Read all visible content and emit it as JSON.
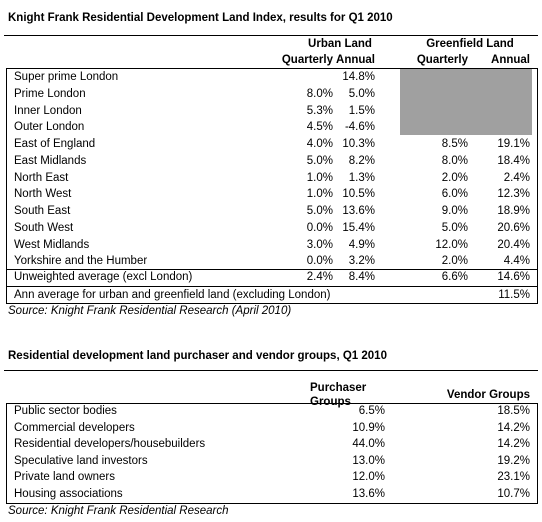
{
  "table1": {
    "title": "Knight Frank Residential Development Land Index, results for Q1 2010",
    "group_headers": [
      "Urban Land",
      "Greenfield Land"
    ],
    "col_headers": [
      "Quarterly",
      "Annual",
      "Quarterly",
      "Annual"
    ],
    "rows": [
      [
        "Super prime London",
        null,
        "14.8%",
        null,
        null
      ],
      [
        "Prime London",
        "8.0%",
        "5.0%",
        null,
        null
      ],
      [
        "Inner London",
        "5.3%",
        "1.5%",
        null,
        null
      ],
      [
        "Outer London",
        "4.5%",
        "-4.6%",
        null,
        null
      ],
      [
        "East of England",
        "4.0%",
        "10.3%",
        "8.5%",
        "19.1%"
      ],
      [
        "East Midlands",
        "5.0%",
        "8.2%",
        "8.0%",
        "18.4%"
      ],
      [
        "North East",
        "1.0%",
        "1.3%",
        "2.0%",
        "2.4%"
      ],
      [
        "North West",
        "1.0%",
        "10.5%",
        "6.0%",
        "12.3%"
      ],
      [
        "South East",
        "5.0%",
        "13.6%",
        "9.0%",
        "18.9%"
      ],
      [
        "South West",
        "0.0%",
        "15.4%",
        "5.0%",
        "20.6%"
      ],
      [
        "West Midlands",
        "3.0%",
        "4.9%",
        "12.0%",
        "20.4%"
      ],
      [
        "Yorkshire and the Humber",
        "0.0%",
        "3.2%",
        "2.0%",
        "4.4%"
      ]
    ],
    "average_row": [
      "Unweighted average (excl London)",
      "2.4%",
      "8.4%",
      "6.6%",
      "14.6%"
    ],
    "ann_average_row": [
      "Ann average for urban and greenfield land (excluding London)",
      "11.5%"
    ],
    "source": "Source: Knight Frank Residential Research (April 2010)"
  },
  "table2": {
    "title": "Residential development land purchaser and vendor groups, Q1 2010",
    "col_headers": [
      "Purchaser Groups",
      "Vendor Groups"
    ],
    "rows": [
      [
        "Public sector bodies",
        "6.5%",
        "18.5%"
      ],
      [
        "Commercial developers",
        "10.9%",
        "14.2%"
      ],
      [
        "Residential developers/housebuilders",
        "44.0%",
        "14.2%"
      ],
      [
        "Speculative land investors",
        "13.0%",
        "19.2%"
      ],
      [
        "Private land owners",
        "12.0%",
        "23.1%"
      ],
      [
        "Housing associations",
        "13.6%",
        "10.7%"
      ]
    ],
    "source": "Source: Knight Frank Residential Research"
  }
}
